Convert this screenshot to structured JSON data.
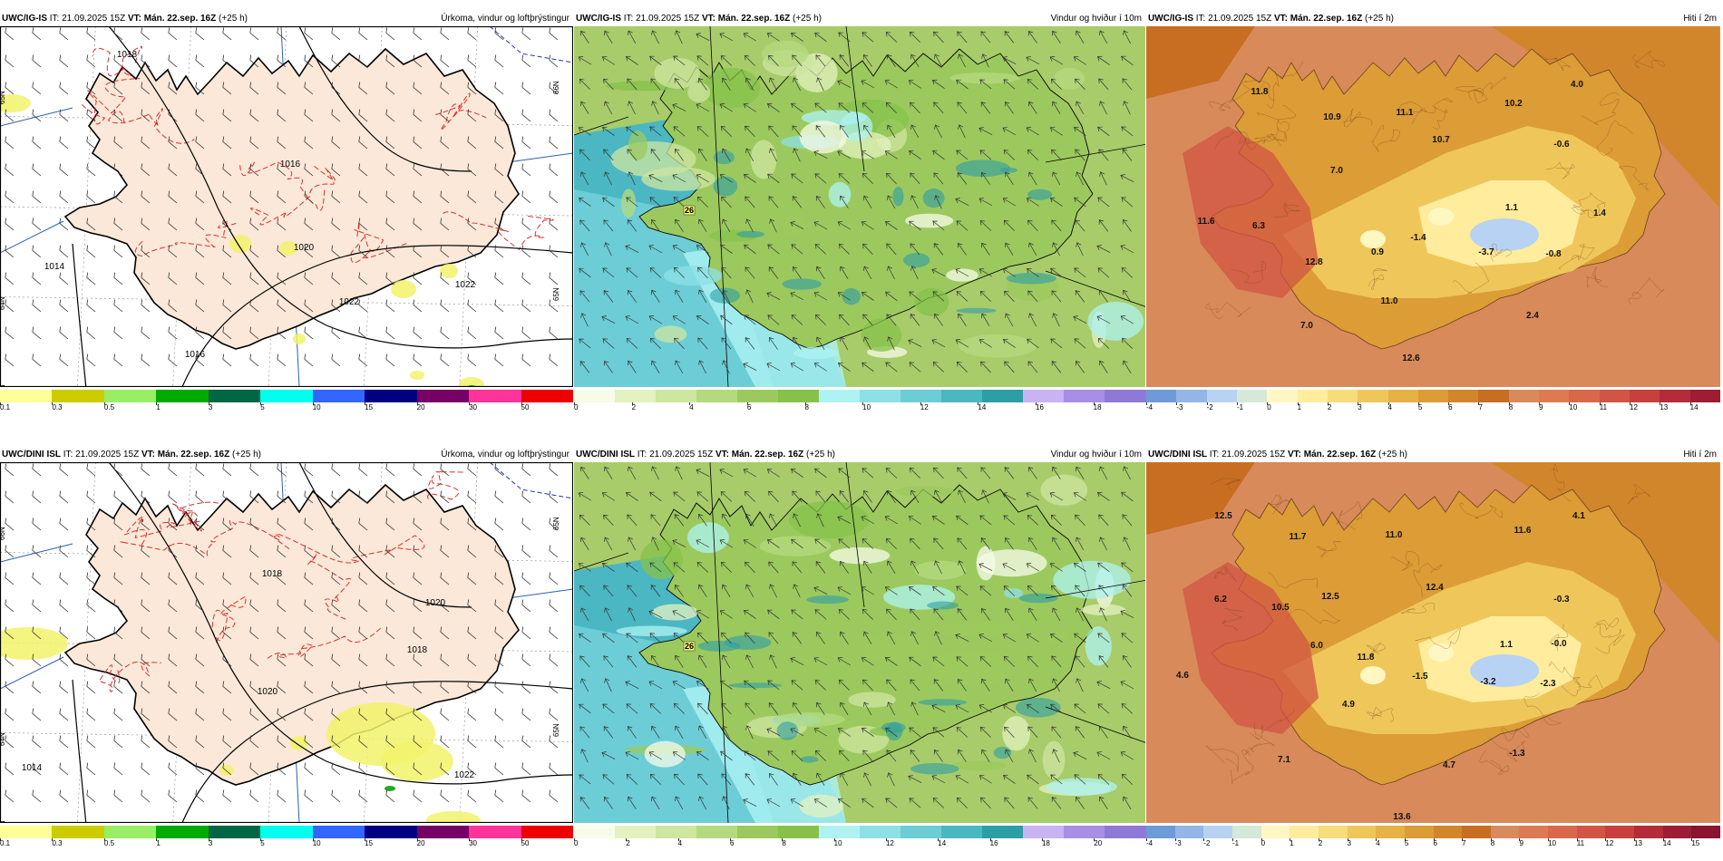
{
  "panels": [
    {
      "model": "UWC/IG-IS",
      "it": "IT: 21.09.2025 15Z",
      "vt_label": "VT:",
      "vt": "Mán. 22.sep. 16Z",
      "lead": "(+25 h)",
      "title": "Úrkoma, vindur og loftþrýstingur",
      "kind": "precip",
      "isobars": [
        "1018",
        "1016",
        "1020",
        "1022",
        "1014",
        "1016",
        "1022"
      ],
      "lat_labels": [
        "65N",
        "64N",
        "66N",
        "65N",
        "64N"
      ],
      "colorbar": {
        "colors": [
          "#ffff99",
          "#cccc00",
          "#99ee66",
          "#00aa00",
          "#006644",
          "#00ffee",
          "#3366ff",
          "#000080",
          "#770066",
          "#ff3399",
          "#ee0000"
        ],
        "ticks": [
          "0.1",
          "0.3",
          "0.5",
          "1",
          "3",
          "5",
          "10",
          "15",
          "20",
          "30",
          "50"
        ]
      }
    },
    {
      "model": "UWC/IG-IS",
      "it": "IT: 21.09.2025 15Z",
      "vt_label": "VT:",
      "vt": "Mán. 22.sep. 16Z",
      "lead": "(+25 h)",
      "title": "Vindur og hviður í 10m",
      "kind": "wind",
      "gust_labels": [
        "26"
      ],
      "colorbar": {
        "colors": [
          "#f7fbe8",
          "#e3f2c0",
          "#cde6a0",
          "#b5d97f",
          "#9cc95e",
          "#86c14a",
          "#aef3f2",
          "#8ee0e6",
          "#6ccdd6",
          "#4bb7c2",
          "#2e9ea6",
          "#c9b3f2",
          "#a98ee6",
          "#8e7ad6"
        ],
        "ticks": [
          "0",
          "2",
          "4",
          "6",
          "8",
          "10",
          "12",
          "14",
          "16",
          "18"
        ]
      }
    },
    {
      "model": "UWC/IG-IS",
      "it": "IT: 21.09.2025 15Z",
      "vt_label": "VT:",
      "vt": "Mán. 22.sep. 16Z",
      "lead": "(+25 h)",
      "title": "Hiti í 2m",
      "kind": "temp",
      "temp_labels": [
        "11.8",
        "10.9",
        "11.1",
        "10.2",
        "4.0",
        "10.7",
        "-0.6",
        "7.0",
        "11.6",
        "6.3",
        "1.1",
        "1.4",
        "0.9",
        "-1.4",
        "-3.7",
        "-0.8",
        "12.8",
        "11.0",
        "7.0",
        "2.4",
        "12.6"
      ],
      "colorbar": {
        "colors": [
          "#6f9ad8",
          "#93b6e6",
          "#b7d2f2",
          "#d6e8d8",
          "#fff7c2",
          "#ffec9c",
          "#f7dc7a",
          "#efc65a",
          "#e6b246",
          "#dc9c36",
          "#d2862c",
          "#c86e22",
          "#d88a5a",
          "#de7a52",
          "#d9684a",
          "#d15444",
          "#c8403e",
          "#b42c3a",
          "#9e1c34"
        ],
        "ticks": [
          "-4",
          "-3",
          "-2",
          "-1",
          "0",
          "1",
          "2",
          "3",
          "4",
          "5",
          "6",
          "7",
          "8",
          "9",
          "10",
          "11",
          "12",
          "13",
          "14"
        ]
      }
    },
    {
      "model": "UWC/DINI ISL",
      "it": "IT: 21.09.2025 15Z",
      "vt_label": "VT:",
      "vt": "Mán. 22.sep. 16Z",
      "lead": "(+25 h)",
      "title": "Úrkoma, vindur og loftþrýstingur",
      "kind": "precip",
      "isobars": [
        "1018",
        "1020",
        "1018",
        "1020",
        "1014",
        "1022"
      ],
      "lat_labels": [
        "66N",
        "64N",
        "65N",
        "65N",
        "66N"
      ],
      "colorbar": {
        "colors": [
          "#ffff99",
          "#cccc00",
          "#99ee66",
          "#00aa00",
          "#006644",
          "#00ffee",
          "#3366ff",
          "#000080",
          "#770066",
          "#ff3399",
          "#ee0000"
        ],
        "ticks": [
          "0.1",
          "0.3",
          "0.5",
          "1",
          "3",
          "5",
          "10",
          "15",
          "20",
          "30",
          "50"
        ]
      }
    },
    {
      "model": "UWC/DINI ISL",
      "it": "IT: 21.09.2025 15Z",
      "vt_label": "VT:",
      "vt": "Mán. 22.sep. 16Z",
      "lead": "(+25 h)",
      "title": "Vindur og hviður í 10m",
      "kind": "wind",
      "gust_labels": [
        "26"
      ],
      "colorbar": {
        "colors": [
          "#f7fbe8",
          "#e3f2c0",
          "#cde6a0",
          "#b5d97f",
          "#9cc95e",
          "#86c14a",
          "#aef3f2",
          "#8ee0e6",
          "#6ccdd6",
          "#4bb7c2",
          "#2e9ea6",
          "#c9b3f2",
          "#a98ee6",
          "#8e7ad6"
        ],
        "ticks": [
          "0",
          "2",
          "4",
          "6",
          "8",
          "10",
          "12",
          "14",
          "16",
          "18",
          "20"
        ]
      }
    },
    {
      "model": "UWC/DINI ISL",
      "it": "IT: 21.09.2025 15Z",
      "vt_label": "VT:",
      "vt": "Mán. 22.sep. 16Z",
      "lead": "(+25 h)",
      "title": "Hiti í 2m",
      "kind": "temp",
      "temp_labels": [
        "12.5",
        "11.7",
        "11.0",
        "11.6",
        "4.1",
        "6.2",
        "12.5",
        "12.4",
        "-0.3",
        "10.5",
        "-0.0",
        "6.0",
        "11.8",
        "1.1",
        "4.6",
        "-1.5",
        "-3.2",
        "-2.3",
        "4.9",
        "7.1",
        "4.7",
        "-1.3",
        "13.6"
      ],
      "colorbar": {
        "colors": [
          "#6f9ad8",
          "#93b6e6",
          "#b7d2f2",
          "#d6e8d8",
          "#fff7c2",
          "#ffec9c",
          "#f7dc7a",
          "#efc65a",
          "#e6b246",
          "#dc9c36",
          "#d2862c",
          "#c86e22",
          "#d88a5a",
          "#de7a52",
          "#d9684a",
          "#d15444",
          "#c8403e",
          "#b42c3a",
          "#9e1c34",
          "#8a1430"
        ],
        "ticks": [
          "-4",
          "-3",
          "-2",
          "-1",
          "0",
          "1",
          "2",
          "3",
          "4",
          "5",
          "6",
          "7",
          "8",
          "9",
          "10",
          "11",
          "12",
          "13",
          "14",
          "15"
        ]
      }
    }
  ]
}
